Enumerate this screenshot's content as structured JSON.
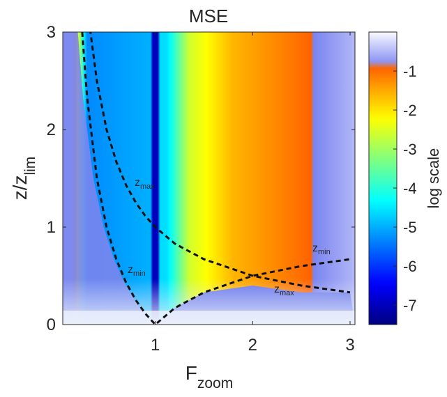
{
  "chart_data": {
    "type": "heatmap",
    "title": "MSE",
    "xlabel": {
      "main": "F",
      "sub": "zoom"
    },
    "ylabel": {
      "main": "z/z",
      "sub": "lim"
    },
    "xlim": [
      0.05,
      3.05
    ],
    "ylim": [
      0,
      3
    ],
    "xticks": [
      "1",
      "2",
      "3"
    ],
    "yticks": [
      "0",
      "1",
      "2",
      "3"
    ],
    "colorbar": {
      "label": "log scale",
      "range": [
        -7.5,
        0
      ],
      "ticks": [
        "-1",
        "-2",
        "-3",
        "-4",
        "-5",
        "-6",
        "-7"
      ],
      "colormap": "jet"
    },
    "series": [
      {
        "label_main": "z",
        "label_sub": "max",
        "x": [
          0.33,
          0.4,
          0.5,
          0.6,
          0.7,
          0.8,
          0.9,
          1.0,
          1.2,
          1.5,
          2.0,
          2.5,
          3.0
        ],
        "y": [
          3.03,
          2.5,
          2.0,
          1.67,
          1.43,
          1.25,
          1.11,
          1.0,
          0.83,
          0.67,
          0.5,
          0.4,
          0.33
        ],
        "style": "dashed"
      },
      {
        "label_main": "z",
        "label_sub": "min",
        "x": [
          0.25,
          0.3,
          0.4,
          0.5,
          0.6,
          0.7,
          0.8,
          0.9,
          1.0,
          1.2,
          1.5,
          2.0,
          2.5,
          3.0
        ],
        "y": [
          3.0,
          2.33,
          1.5,
          1.0,
          0.67,
          0.43,
          0.25,
          0.11,
          0.0,
          0.17,
          0.33,
          0.5,
          0.6,
          0.67
        ],
        "style": "dashed"
      }
    ]
  }
}
